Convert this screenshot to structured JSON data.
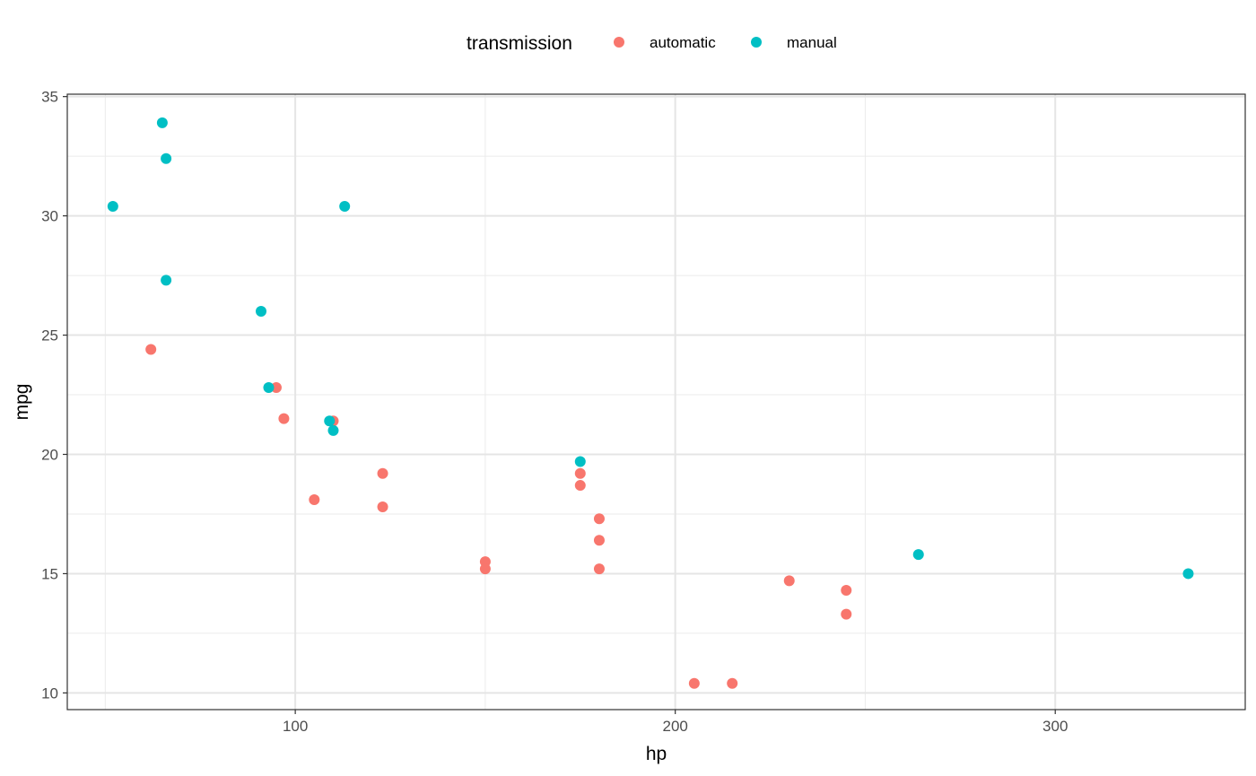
{
  "chart_data": {
    "type": "scatter",
    "title": "",
    "xlabel": "hp",
    "ylabel": "mpg",
    "xlim": [
      40,
      350
    ],
    "ylim": [
      9.3,
      35.1
    ],
    "x_ticks": [
      100,
      200,
      300
    ],
    "x_tick_labels": [
      "100",
      "200",
      "300"
    ],
    "x_minor_ticks": [
      50,
      150,
      250
    ],
    "y_ticks": [
      10,
      15,
      20,
      25,
      30,
      35
    ],
    "y_tick_labels": [
      "10",
      "15",
      "20",
      "25",
      "30",
      "35"
    ],
    "y_minor_ticks": [
      12.5,
      17.5,
      22.5,
      27.5,
      32.5
    ],
    "grid": true,
    "legend": {
      "title": "transmission",
      "position": "top"
    },
    "series": [
      {
        "name": "automatic",
        "color": "#F8766D",
        "points": [
          [
            110,
            21.4
          ],
          [
            175,
            18.7
          ],
          [
            105,
            18.1
          ],
          [
            245,
            14.3
          ],
          [
            62,
            24.4
          ],
          [
            95,
            22.8
          ],
          [
            123,
            19.2
          ],
          [
            123,
            17.8
          ],
          [
            180,
            16.4
          ],
          [
            180,
            17.3
          ],
          [
            180,
            15.2
          ],
          [
            205,
            10.4
          ],
          [
            215,
            10.4
          ],
          [
            230,
            14.7
          ],
          [
            97,
            21.5
          ],
          [
            150,
            15.5
          ],
          [
            150,
            15.2
          ],
          [
            245,
            13.3
          ],
          [
            175,
            19.2
          ]
        ]
      },
      {
        "name": "manual",
        "color": "#00BFC4",
        "points": [
          [
            110,
            21.0
          ],
          [
            109,
            21.4
          ],
          [
            93,
            22.8
          ],
          [
            66,
            32.4
          ],
          [
            52,
            30.4
          ],
          [
            65,
            33.9
          ],
          [
            66,
            27.3
          ],
          [
            91,
            26.0
          ],
          [
            113,
            30.4
          ],
          [
            264,
            15.8
          ],
          [
            175,
            19.7
          ],
          [
            335,
            15.0
          ]
        ]
      }
    ]
  }
}
